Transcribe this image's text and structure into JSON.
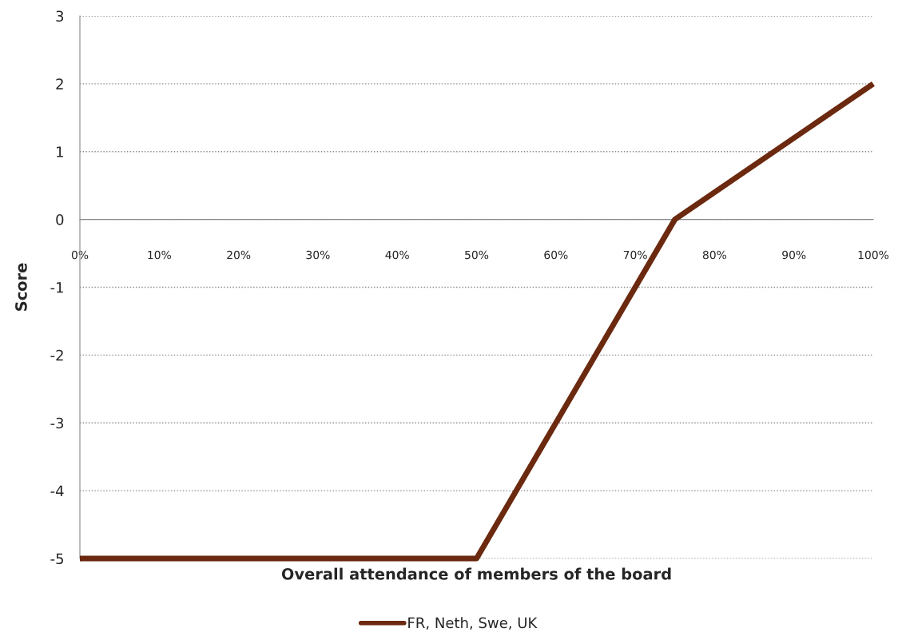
{
  "chart_data": {
    "type": "line",
    "xlabel": "Overall attendance of members of the board",
    "ylabel": "Score",
    "series": [
      {
        "name": "FR, Neth, Swe, UK",
        "color": "#6b2a0f",
        "x": [
          0,
          50,
          75,
          100
        ],
        "values": [
          -5,
          -5,
          0,
          2
        ]
      }
    ],
    "xlim": [
      0,
      100
    ],
    "xticks": [
      {
        "value": 0,
        "label": "0%"
      },
      {
        "value": 10,
        "label": "10%"
      },
      {
        "value": 20,
        "label": "20%"
      },
      {
        "value": 30,
        "label": "30%"
      },
      {
        "value": 40,
        "label": "40%"
      },
      {
        "value": 50,
        "label": "50%"
      },
      {
        "value": 60,
        "label": "60%"
      },
      {
        "value": 70,
        "label": "70%"
      },
      {
        "value": 80,
        "label": "80%"
      },
      {
        "value": 90,
        "label": "90%"
      },
      {
        "value": 100,
        "label": "100%"
      }
    ],
    "ylim": [
      -5,
      3
    ],
    "yticks": [
      -5,
      -4,
      -3,
      -2,
      -1,
      0,
      1,
      2,
      3
    ],
    "grid": "y",
    "legend": "bottom",
    "marker": "none",
    "line_style": "solid"
  }
}
